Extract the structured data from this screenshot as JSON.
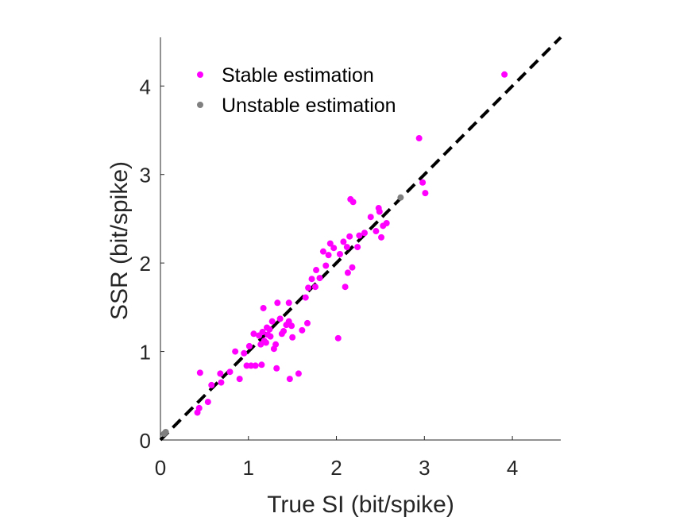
{
  "chart_data": {
    "type": "scatter",
    "title": "",
    "xlabel": "True SI (bit/spike)",
    "ylabel": "SSR (bit/spike)",
    "xlim": [
      0,
      4.55
    ],
    "ylim": [
      0,
      4.55
    ],
    "xticks": [
      "0",
      "1",
      "2",
      "3",
      "4"
    ],
    "yticks": [
      "0",
      "1",
      "2",
      "3",
      "4"
    ],
    "grid": false,
    "legend_position": "top-left",
    "identity_line": {
      "style": "dashed",
      "color": "#000000"
    },
    "series": [
      {
        "name": "Stable estimation",
        "color": "#ff00ff",
        "points": [
          [
            0.42,
            0.31
          ],
          [
            0.45,
            0.76
          ],
          [
            0.44,
            0.36
          ],
          [
            0.54,
            0.43
          ],
          [
            0.58,
            0.62
          ],
          [
            0.68,
            0.75
          ],
          [
            0.69,
            0.65
          ],
          [
            0.79,
            0.77
          ],
          [
            0.85,
            1.0
          ],
          [
            0.9,
            0.69
          ],
          [
            0.95,
            0.98
          ],
          [
            0.98,
            0.84
          ],
          [
            1.01,
            1.06
          ],
          [
            1.03,
            0.84
          ],
          [
            1.06,
            1.2
          ],
          [
            1.08,
            0.84
          ],
          [
            1.12,
            1.18
          ],
          [
            1.14,
            1.08
          ],
          [
            1.15,
            0.85
          ],
          [
            1.16,
            1.22
          ],
          [
            1.17,
            1.49
          ],
          [
            1.18,
            1.12
          ],
          [
            1.2,
            1.1
          ],
          [
            1.21,
            1.27
          ],
          [
            1.22,
            1.19
          ],
          [
            1.24,
            1.25
          ],
          [
            1.25,
            1.17
          ],
          [
            1.27,
            1.34
          ],
          [
            1.29,
            1.03
          ],
          [
            1.31,
            1.08
          ],
          [
            1.32,
            0.81
          ],
          [
            1.33,
            1.55
          ],
          [
            1.36,
            1.37
          ],
          [
            1.38,
            1.2
          ],
          [
            1.4,
            1.23
          ],
          [
            1.43,
            1.3
          ],
          [
            1.46,
            1.55
          ],
          [
            1.46,
            1.34
          ],
          [
            1.47,
            0.69
          ],
          [
            1.49,
            1.29
          ],
          [
            1.5,
            1.16
          ],
          [
            1.57,
            0.75
          ],
          [
            1.61,
            1.24
          ],
          [
            1.65,
            1.61
          ],
          [
            1.67,
            1.32
          ],
          [
            1.68,
            1.72
          ],
          [
            1.72,
            1.82
          ],
          [
            1.76,
            1.73
          ],
          [
            1.77,
            1.92
          ],
          [
            1.81,
            1.83
          ],
          [
            1.85,
            2.13
          ],
          [
            1.88,
            1.97
          ],
          [
            1.91,
            2.09
          ],
          [
            1.93,
            2.22
          ],
          [
            1.97,
            2.17
          ],
          [
            2.02,
            1.15
          ],
          [
            2.04,
            2.1
          ],
          [
            2.08,
            2.24
          ],
          [
            2.1,
            1.73
          ],
          [
            2.12,
            2.18
          ],
          [
            2.13,
            1.89
          ],
          [
            2.15,
            2.3
          ],
          [
            2.16,
            2.72
          ],
          [
            2.18,
            1.95
          ],
          [
            2.19,
            2.69
          ],
          [
            2.24,
            2.18
          ],
          [
            2.26,
            2.31
          ],
          [
            2.32,
            2.34
          ],
          [
            2.39,
            2.52
          ],
          [
            2.45,
            2.36
          ],
          [
            2.48,
            2.62
          ],
          [
            2.49,
            2.58
          ],
          [
            2.51,
            2.29
          ],
          [
            2.53,
            2.42
          ],
          [
            2.57,
            2.45
          ],
          [
            2.94,
            3.41
          ],
          [
            2.98,
            2.91
          ],
          [
            3.01,
            2.79
          ],
          [
            3.91,
            4.13
          ]
        ]
      },
      {
        "name": "Unstable estimation",
        "color": "#808080",
        "points": [
          [
            0.04,
            0.07
          ],
          [
            0.06,
            0.09
          ],
          [
            2.73,
            2.74
          ]
        ]
      }
    ]
  }
}
